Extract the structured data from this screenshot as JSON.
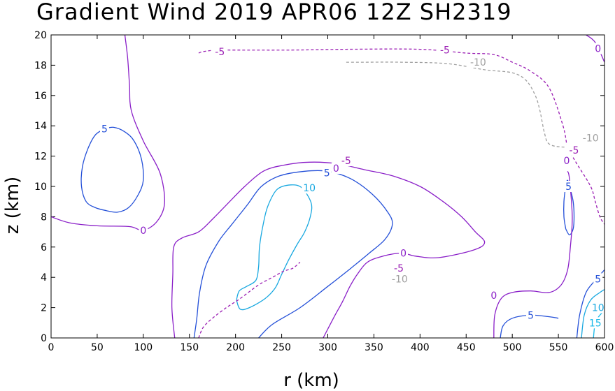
{
  "chart_data": {
    "type": "contour",
    "title": "Gradient Wind 2019 APR06 12Z   SH2319",
    "xlabel": "r (km)",
    "ylabel": "z (km)",
    "xlim": [
      0,
      600
    ],
    "ylim": [
      0,
      20
    ],
    "xticks": [
      0,
      50,
      100,
      150,
      200,
      250,
      300,
      350,
      400,
      450,
      500,
      550,
      600
    ],
    "yticks": [
      0,
      2,
      4,
      6,
      8,
      10,
      12,
      14,
      16,
      18,
      20
    ],
    "grid": false,
    "colors": {
      "c0": "#8a1fc8",
      "cneg5": "#9b1fb4",
      "cneg10": "#a0a0a0",
      "c5": "#2450d8",
      "c10": "#18a8e0",
      "c15": "#18b8e8"
    },
    "contours": [
      {
        "level": 0,
        "color": "c0",
        "dashed": false,
        "points": [
          [
            0,
            8
          ],
          [
            20,
            7.6
          ],
          [
            50,
            7.4
          ],
          [
            85,
            7.35
          ],
          [
            100,
            7.1
          ],
          [
            115,
            7.7
          ],
          [
            123,
            8.9
          ],
          [
            118,
            10.9
          ],
          [
            100,
            13
          ],
          [
            87,
            15
          ],
          [
            85,
            16.7
          ],
          [
            83,
            18.5
          ],
          [
            80,
            20
          ]
        ]
      },
      {
        "level": 5,
        "color": "c5",
        "dashed": false,
        "points": [
          [
            58,
            13.8
          ],
          [
            48,
            13.4
          ],
          [
            40,
            12.5
          ],
          [
            34,
            11.3
          ],
          [
            33,
            10
          ],
          [
            38,
            9
          ],
          [
            48,
            8.6
          ],
          [
            60,
            8.4
          ],
          [
            72,
            8.3
          ],
          [
            84,
            8.6
          ],
          [
            94,
            9.4
          ],
          [
            100,
            10.4
          ],
          [
            98,
            11.8
          ],
          [
            90,
            13
          ],
          [
            80,
            13.6
          ],
          [
            68,
            13.9
          ],
          [
            58,
            13.8
          ]
        ]
      },
      {
        "level": 0,
        "color": "c0",
        "dashed": false,
        "points": [
          [
            134,
            0
          ],
          [
            131,
            2
          ],
          [
            132,
            4.2
          ],
          [
            133,
            6
          ],
          [
            142,
            6.6
          ],
          [
            160,
            7
          ],
          [
            176,
            7.9
          ],
          [
            192,
            8.9
          ],
          [
            210,
            10
          ],
          [
            230,
            11
          ],
          [
            252,
            11.4
          ],
          [
            280,
            11.6
          ],
          [
            310,
            11.5
          ],
          [
            340,
            11.1
          ],
          [
            370,
            10.7
          ],
          [
            400,
            10
          ],
          [
            425,
            9
          ],
          [
            445,
            8
          ],
          [
            460,
            7
          ],
          [
            470,
            6.3
          ],
          [
            458,
            5.8
          ],
          [
            420,
            5.3
          ],
          [
            395,
            5.4
          ],
          [
            380,
            5.6
          ],
          [
            360,
            5.4
          ],
          [
            343,
            5
          ],
          [
            332,
            4.2
          ],
          [
            324,
            3.4
          ],
          [
            316,
            2.4
          ],
          [
            307,
            1.4
          ],
          [
            295,
            0
          ]
        ]
      },
      {
        "level": 5,
        "color": "c5",
        "dashed": false,
        "points": [
          [
            155,
            0
          ],
          [
            158,
            1.3
          ],
          [
            161,
            3
          ],
          [
            168,
            4.8
          ],
          [
            182,
            6.4
          ],
          [
            196,
            7.5
          ],
          [
            213,
            8.8
          ],
          [
            228,
            10
          ],
          [
            248,
            10.7
          ],
          [
            275,
            11
          ],
          [
            300,
            11
          ],
          [
            325,
            10.5
          ],
          [
            348,
            9.5
          ],
          [
            365,
            8.3
          ],
          [
            370,
            7.5
          ],
          [
            362,
            6.5
          ],
          [
            345,
            5.6
          ],
          [
            325,
            4.6
          ],
          [
            300,
            3.4
          ],
          [
            270,
            2
          ],
          [
            240,
            0.9
          ],
          [
            225,
            0
          ]
        ]
      },
      {
        "level": 10,
        "color": "c10",
        "dashed": false,
        "points": [
          [
            201,
            2.5
          ],
          [
            205,
            1.9
          ],
          [
            215,
            2
          ],
          [
            232,
            2.6
          ],
          [
            243,
            3.3
          ],
          [
            250,
            4.2
          ],
          [
            258,
            5.2
          ],
          [
            267,
            6.2
          ],
          [
            275,
            7
          ],
          [
            281,
            8
          ],
          [
            282,
            8.9
          ],
          [
            272,
            9.9
          ],
          [
            260,
            10.1
          ],
          [
            245,
            9.8
          ],
          [
            235,
            8.7
          ],
          [
            230,
            7.5
          ],
          [
            226,
            6
          ],
          [
            225,
            4.7
          ],
          [
            222,
            3.8
          ],
          [
            212,
            3.4
          ],
          [
            204,
            3.1
          ],
          [
            201,
            2.5
          ]
        ]
      },
      {
        "level": -5,
        "color": "cneg5",
        "dashed": true,
        "points": [
          [
            160,
            0
          ],
          [
            165,
            0.7
          ],
          [
            175,
            1.3
          ],
          [
            190,
            2
          ],
          [
            205,
            2.6
          ],
          [
            225,
            3.5
          ],
          [
            240,
            4
          ],
          [
            252,
            4.4
          ],
          [
            262,
            4.6
          ],
          [
            270,
            5
          ]
        ]
      },
      {
        "level": -5,
        "color": "cneg5",
        "dashed": true,
        "points": [
          [
            160,
            18.8
          ],
          [
            165,
            18.9
          ],
          [
            180,
            19
          ],
          [
            200,
            19
          ],
          [
            260,
            19
          ],
          [
            320,
            19.05
          ],
          [
            400,
            19.05
          ],
          [
            450,
            18.8
          ],
          [
            480,
            18.7
          ],
          [
            500,
            18.2
          ],
          [
            520,
            17.6
          ],
          [
            540,
            16.5
          ],
          [
            555,
            14
          ],
          [
            560,
            12.5
          ],
          [
            565,
            12
          ],
          [
            570,
            11.5
          ],
          [
            585,
            10
          ],
          [
            590,
            9
          ],
          [
            595,
            8
          ],
          [
            600,
            7.5
          ]
        ]
      },
      {
        "level": -10,
        "color": "cneg10",
        "dashed": true,
        "points": [
          [
            320,
            18.2
          ],
          [
            340,
            18.2
          ],
          [
            380,
            18.2
          ],
          [
            430,
            18.1
          ],
          [
            470,
            17.7
          ],
          [
            500,
            17.5
          ],
          [
            515,
            17
          ],
          [
            525,
            16
          ],
          [
            530,
            15
          ],
          [
            535,
            13.5
          ],
          [
            540,
            12.8
          ],
          [
            555,
            12.6
          ],
          [
            575,
            12.7
          ]
        ]
      },
      {
        "level": 0,
        "color": "c0",
        "dashed": false,
        "points": [
          [
            580,
            20
          ],
          [
            590,
            19.5
          ],
          [
            600,
            18.2
          ]
        ]
      },
      {
        "level": 5,
        "color": "c5",
        "dashed": false,
        "points": [
          [
            558,
            7.2
          ],
          [
            556,
            8
          ],
          [
            556,
            9
          ],
          [
            558,
            10
          ],
          [
            560,
            10.4
          ],
          [
            563,
            9.8
          ],
          [
            566,
            9
          ],
          [
            567,
            8
          ],
          [
            566,
            7.2
          ],
          [
            562,
            6.8
          ],
          [
            558,
            7.2
          ]
        ]
      },
      {
        "level": 0,
        "color": "c0",
        "dashed": false,
        "points": [
          [
            480,
            0
          ],
          [
            481,
            1.5
          ],
          [
            488,
            2.6
          ],
          [
            500,
            3
          ],
          [
            520,
            3.1
          ],
          [
            540,
            3
          ],
          [
            553,
            3.5
          ],
          [
            560,
            4.5
          ],
          [
            563,
            6
          ],
          [
            565,
            8
          ],
          [
            562,
            10.5
          ],
          [
            560,
            11
          ]
        ]
      },
      {
        "level": 5,
        "color": "c5",
        "dashed": false,
        "points": [
          [
            487,
            0
          ],
          [
            490,
            0.8
          ],
          [
            500,
            1.3
          ],
          [
            520,
            1.5
          ],
          [
            540,
            1.4
          ],
          [
            550,
            1.3
          ]
        ]
      },
      {
        "level": 5,
        "color": "c5",
        "dashed": false,
        "points": [
          [
            570,
            0
          ],
          [
            573,
            1.5
          ],
          [
            580,
            3
          ],
          [
            590,
            3.8
          ],
          [
            600,
            4.5
          ]
        ]
      },
      {
        "level": 10,
        "color": "c10",
        "dashed": false,
        "points": [
          [
            575,
            0
          ],
          [
            578,
            1.5
          ],
          [
            585,
            2.5
          ],
          [
            595,
            3
          ],
          [
            600,
            3.2
          ]
        ]
      },
      {
        "level": 15,
        "color": "c15",
        "dashed": false,
        "points": [
          [
            588,
            0
          ],
          [
            590,
            1
          ],
          [
            595,
            1.5
          ],
          [
            600,
            1.8
          ]
        ]
      }
    ],
    "contour_labels": [
      {
        "text": "0",
        "x": 100,
        "y": 7.1,
        "color": "c0"
      },
      {
        "text": "5",
        "x": 58,
        "y": 13.8,
        "color": "c5"
      },
      {
        "text": "-5",
        "x": 183,
        "y": 18.9,
        "color": "cneg5"
      },
      {
        "text": "-5",
        "x": 427,
        "y": 19.0,
        "color": "cneg5"
      },
      {
        "text": "-10",
        "x": 463,
        "y": 18.2,
        "color": "cneg10"
      },
      {
        "text": "0",
        "x": 593,
        "y": 19.1,
        "color": "c0"
      },
      {
        "text": "-10",
        "x": 585,
        "y": 13.2,
        "color": "cneg10"
      },
      {
        "text": "-5",
        "x": 567,
        "y": 12.4,
        "color": "cneg5"
      },
      {
        "text": "0",
        "x": 559,
        "y": 11.7,
        "color": "c0"
      },
      {
        "text": "-5",
        "x": 320,
        "y": 11.7,
        "color": "cneg5"
      },
      {
        "text": "0",
        "x": 309,
        "y": 11.2,
        "color": "c0"
      },
      {
        "text": "5",
        "x": 299,
        "y": 10.9,
        "color": "c5"
      },
      {
        "text": "10",
        "x": 280,
        "y": 9.9,
        "color": "c10"
      },
      {
        "text": "5",
        "x": 561,
        "y": 10.0,
        "color": "c5"
      },
      {
        "text": "0",
        "x": 382,
        "y": 5.6,
        "color": "c0"
      },
      {
        "text": "-5",
        "x": 377,
        "y": 4.6,
        "color": "cneg5"
      },
      {
        "text": "-10",
        "x": 378,
        "y": 3.9,
        "color": "cneg10"
      },
      {
        "text": "0",
        "x": 480,
        "y": 2.8,
        "color": "c0"
      },
      {
        "text": "5",
        "x": 520,
        "y": 1.5,
        "color": "c5"
      },
      {
        "text": "5",
        "x": 593,
        "y": 3.9,
        "color": "c5"
      },
      {
        "text": "10",
        "x": 593,
        "y": 2.0,
        "color": "c10"
      },
      {
        "text": "15",
        "x": 590,
        "y": 1.0,
        "color": "c15"
      }
    ]
  }
}
